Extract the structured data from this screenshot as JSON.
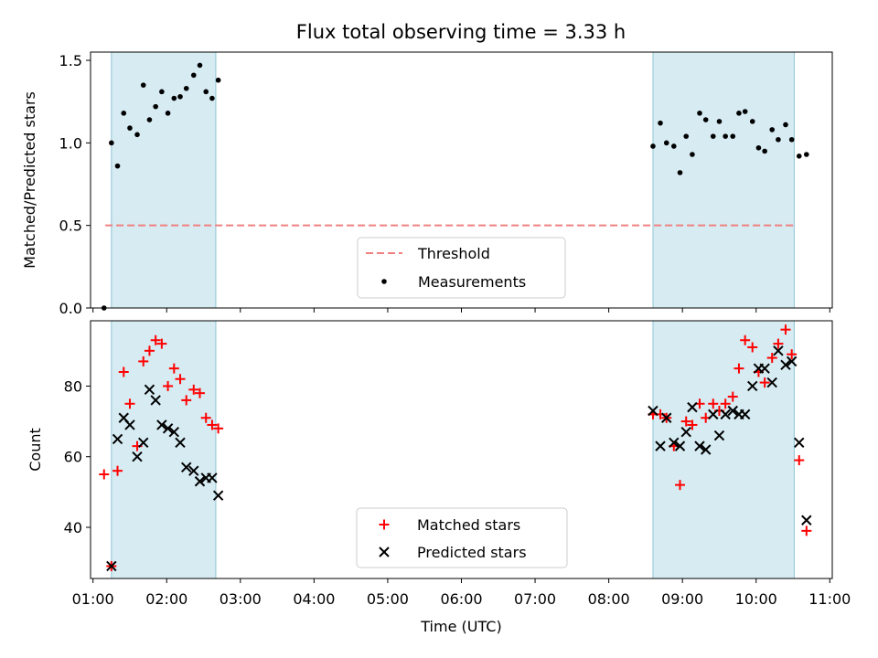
{
  "title": "Flux total observing time = 3.33 h",
  "chart_data": [
    {
      "type": "scatter",
      "ylabel": "Matched/Predicted stars",
      "xlabel": "",
      "ylim": [
        0,
        1.55
      ],
      "yticks": [
        "0.0",
        "0.5",
        "1.0",
        "1.5"
      ],
      "grid": false,
      "legend": "bottom-center",
      "threshold": {
        "name": "Threshold",
        "value": 0.5,
        "x_start": "01:10",
        "x_end": "10:33",
        "color": "#f08080"
      },
      "shaded_intervals": [
        [
          "01:15",
          "02:40"
        ],
        [
          "08:36",
          "10:31"
        ]
      ],
      "series": [
        {
          "name": "Measurements",
          "color": "#000000",
          "x": [
            "01:09",
            "01:15",
            "01:20",
            "01:25",
            "01:30",
            "01:36",
            "01:41",
            "01:46",
            "01:51",
            "01:56",
            "02:01",
            "02:06",
            "02:11",
            "02:16",
            "02:22",
            "02:27",
            "02:32",
            "02:37",
            "02:42",
            "08:36",
            "08:42",
            "08:47",
            "08:53",
            "08:58",
            "09:03",
            "09:08",
            "09:14",
            "09:19",
            "09:25",
            "09:30",
            "09:35",
            "09:41",
            "09:46",
            "09:51",
            "09:57",
            "10:02",
            "10:07",
            "10:13",
            "10:18",
            "10:24",
            "10:29",
            "10:35",
            "10:41"
          ],
          "y": [
            0.0,
            1.0,
            0.86,
            1.18,
            1.09,
            1.05,
            1.35,
            1.14,
            1.22,
            1.31,
            1.18,
            1.27,
            1.28,
            1.33,
            1.41,
            1.47,
            1.31,
            1.27,
            1.38,
            0.98,
            1.12,
            1.0,
            0.98,
            0.82,
            1.04,
            0.93,
            1.18,
            1.14,
            1.04,
            1.13,
            1.04,
            1.04,
            1.18,
            1.19,
            1.13,
            0.97,
            0.95,
            1.08,
            1.02,
            1.11,
            1.02,
            0.92,
            0.93
          ]
        }
      ]
    },
    {
      "type": "scatter",
      "ylabel": "Count",
      "xlabel": "Time (UTC)",
      "ylim": [
        25.5,
        98.5
      ],
      "yticks": [
        "40",
        "60",
        "80"
      ],
      "xlim": [
        "00:58",
        "11:02"
      ],
      "xticks": [
        "01:00",
        "02:00",
        "03:00",
        "04:00",
        "05:00",
        "06:00",
        "07:00",
        "08:00",
        "09:00",
        "10:00",
        "11:00"
      ],
      "grid": false,
      "legend": "bottom-center",
      "shaded_intervals": [
        [
          "01:15",
          "02:40"
        ],
        [
          "08:36",
          "10:31"
        ]
      ],
      "series": [
        {
          "name": "Matched stars",
          "color": "#ff0000",
          "marker": "+",
          "x": [
            "01:09",
            "01:15",
            "01:20",
            "01:25",
            "01:30",
            "01:36",
            "01:41",
            "01:46",
            "01:51",
            "01:56",
            "02:01",
            "02:06",
            "02:11",
            "02:16",
            "02:22",
            "02:27",
            "02:32",
            "02:37",
            "02:42",
            "08:36",
            "08:42",
            "08:47",
            "08:53",
            "08:58",
            "09:03",
            "09:08",
            "09:14",
            "09:19",
            "09:25",
            "09:30",
            "09:35",
            "09:41",
            "09:46",
            "09:51",
            "09:57",
            "10:02",
            "10:07",
            "10:13",
            "10:18",
            "10:24",
            "10:29",
            "10:35",
            "10:41"
          ],
          "y": [
            55,
            29,
            56,
            84,
            75,
            63,
            87,
            90,
            93,
            92,
            80,
            85,
            82,
            76,
            79,
            78,
            71,
            69,
            68,
            72,
            72,
            71,
            63,
            52,
            70,
            69,
            75,
            71,
            75,
            73,
            75,
            77,
            85,
            93,
            91,
            84,
            81,
            88,
            92,
            96,
            89,
            59,
            39
          ]
        },
        {
          "name": "Predicted stars",
          "color": "#000000",
          "marker": "x",
          "x": [
            "01:15",
            "01:20",
            "01:25",
            "01:30",
            "01:36",
            "01:41",
            "01:46",
            "01:51",
            "01:56",
            "02:01",
            "02:06",
            "02:11",
            "02:16",
            "02:22",
            "02:27",
            "02:32",
            "02:37",
            "02:42",
            "08:36",
            "08:42",
            "08:47",
            "08:53",
            "08:58",
            "09:03",
            "09:08",
            "09:14",
            "09:19",
            "09:25",
            "09:30",
            "09:35",
            "09:41",
            "09:46",
            "09:51",
            "09:57",
            "10:02",
            "10:07",
            "10:13",
            "10:18",
            "10:24",
            "10:29",
            "10:35",
            "10:41"
          ],
          "y": [
            29,
            65,
            71,
            69,
            60,
            64,
            79,
            76,
            69,
            68,
            67,
            64,
            57,
            56,
            53,
            54,
            54,
            49,
            73,
            63,
            71,
            64,
            63,
            67,
            74,
            63,
            62,
            72,
            66,
            72,
            73,
            72,
            72,
            80,
            85,
            85,
            81,
            90,
            86,
            87,
            64,
            42
          ]
        }
      ]
    }
  ]
}
